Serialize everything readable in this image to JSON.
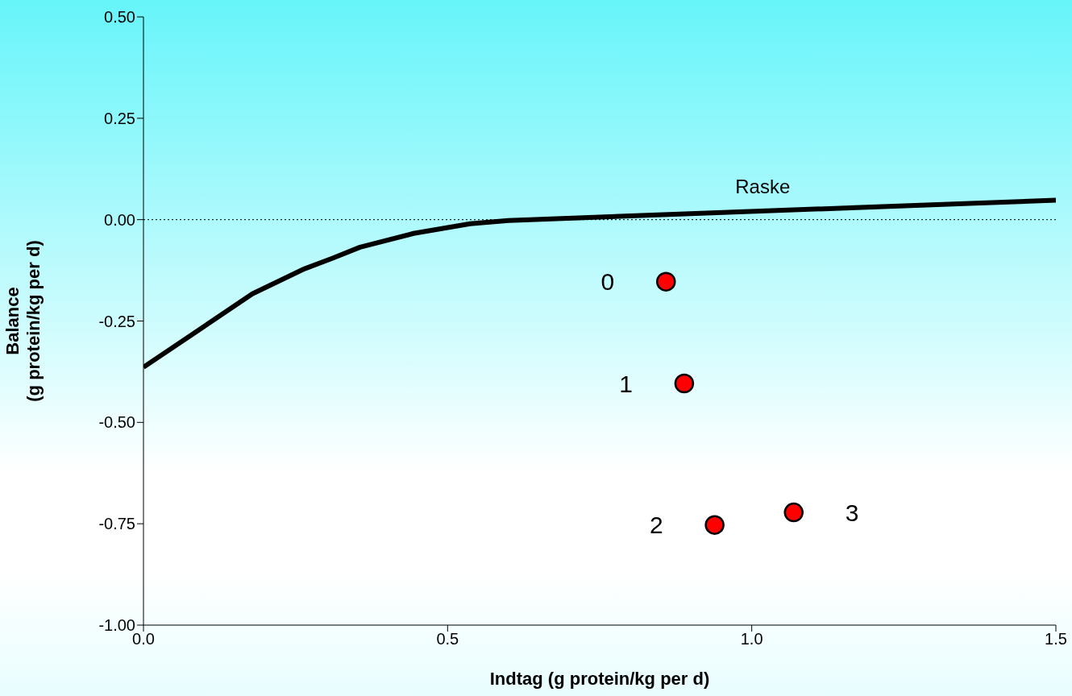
{
  "chart_data": {
    "type": "line",
    "xlabel": "Indtag (g protein/kg per d)",
    "ylabel": "Balance\n(g protein/kg per d)",
    "xlim": [
      0,
      1.5
    ],
    "ylim": [
      -1,
      0.5
    ],
    "xticks": [
      {
        "value": 0,
        "label": "0.0"
      },
      {
        "value": 0.5,
        "label": "0.5"
      },
      {
        "value": 1,
        "label": "1.0"
      },
      {
        "value": 1.5,
        "label": "1.5"
      }
    ],
    "yticks": [
      {
        "value": -1,
        "label": "-1.00"
      },
      {
        "value": -0.75,
        "label": "-0.75"
      },
      {
        "value": -0.5,
        "label": "-0.50"
      },
      {
        "value": -0.25,
        "label": "-0.25"
      },
      {
        "value": 0,
        "label": "0.00"
      },
      {
        "value": 0.25,
        "label": "0.25"
      },
      {
        "value": 0.5,
        "label": "0.50"
      }
    ],
    "grid": false,
    "series": [
      {
        "color": "#000000",
        "marker": "none",
        "x": [
          0,
          0.179,
          0.265,
          0.311,
          0.356,
          0.444,
          0.537,
          0.6,
          1.5
        ],
        "values": [
          -0.364,
          -0.183,
          -0.121,
          -0.095,
          -0.068,
          -0.034,
          -0.01,
          -0.002,
          0.048
        ]
      },
      {
        "type": "scatter",
        "color": "#ff0000",
        "marker": "circle",
        "x": [
          0.859,
          0.889,
          0.939,
          1.069
        ],
        "values": [
          -0.153,
          -0.404,
          -0.753,
          -0.722
        ]
      }
    ],
    "ref_lines": [
      {
        "axis": "y",
        "value": 0,
        "line_style": "dotted",
        "color": "#000000"
      }
    ],
    "annotations": [
      {
        "text": "Raske",
        "x": 1.018,
        "y": 0.025
      },
      {
        "text": "0",
        "x": 0.859,
        "y": -0.153
      },
      {
        "text": "1",
        "x": 0.889,
        "y": -0.404
      },
      {
        "text": "2",
        "x": 0.939,
        "y": -0.753
      },
      {
        "text": "3",
        "x": 1.069,
        "y": -0.722
      }
    ]
  }
}
